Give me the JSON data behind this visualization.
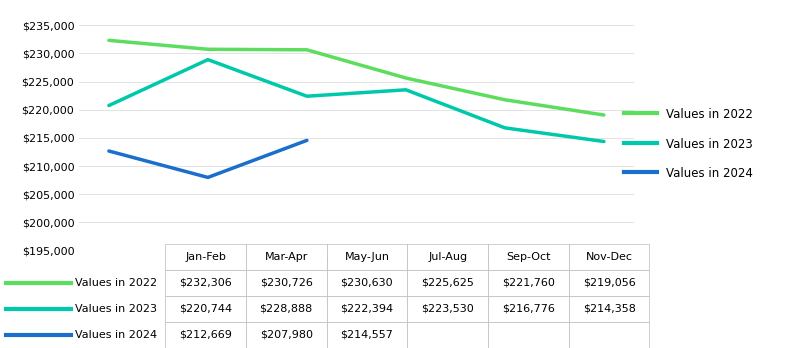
{
  "categories": [
    "Jan-Feb",
    "Mar-Apr",
    "May-Jun",
    "Jul-Aug",
    "Sep-Oct",
    "Nov-Dec"
  ],
  "series": [
    {
      "label": "Values in 2022",
      "color": "#5ddd5d",
      "values": [
        232306,
        230726,
        230630,
        225625,
        221760,
        219056
      ]
    },
    {
      "label": "Values in 2023",
      "color": "#00c8aa",
      "values": [
        220744,
        228888,
        222394,
        223530,
        216776,
        214358
      ]
    },
    {
      "label": "Values in 2024",
      "color": "#1a6fcc",
      "values": [
        212669,
        207980,
        214557,
        null,
        null,
        null
      ]
    }
  ],
  "ylim": [
    195000,
    237000
  ],
  "yticks": [
    195000,
    200000,
    205000,
    210000,
    215000,
    220000,
    225000,
    230000,
    235000
  ],
  "table_rows": [
    [
      "Values in 2022",
      "$232,306",
      "$230,726",
      "$230,630",
      "$225,625",
      "$221,760",
      "$219,056"
    ],
    [
      "Values in 2023",
      "$220,744",
      "$228,888",
      "$222,394",
      "$223,530",
      "$216,776",
      "$214,358"
    ],
    [
      "Values in 2024",
      "$212,669",
      "$207,980",
      "$214,557",
      "",
      "",
      ""
    ]
  ],
  "table_row_colors": [
    "#5ddd5d",
    "#00c8aa",
    "#1a6fcc"
  ],
  "background_color": "#ffffff",
  "line_width": 2.5
}
